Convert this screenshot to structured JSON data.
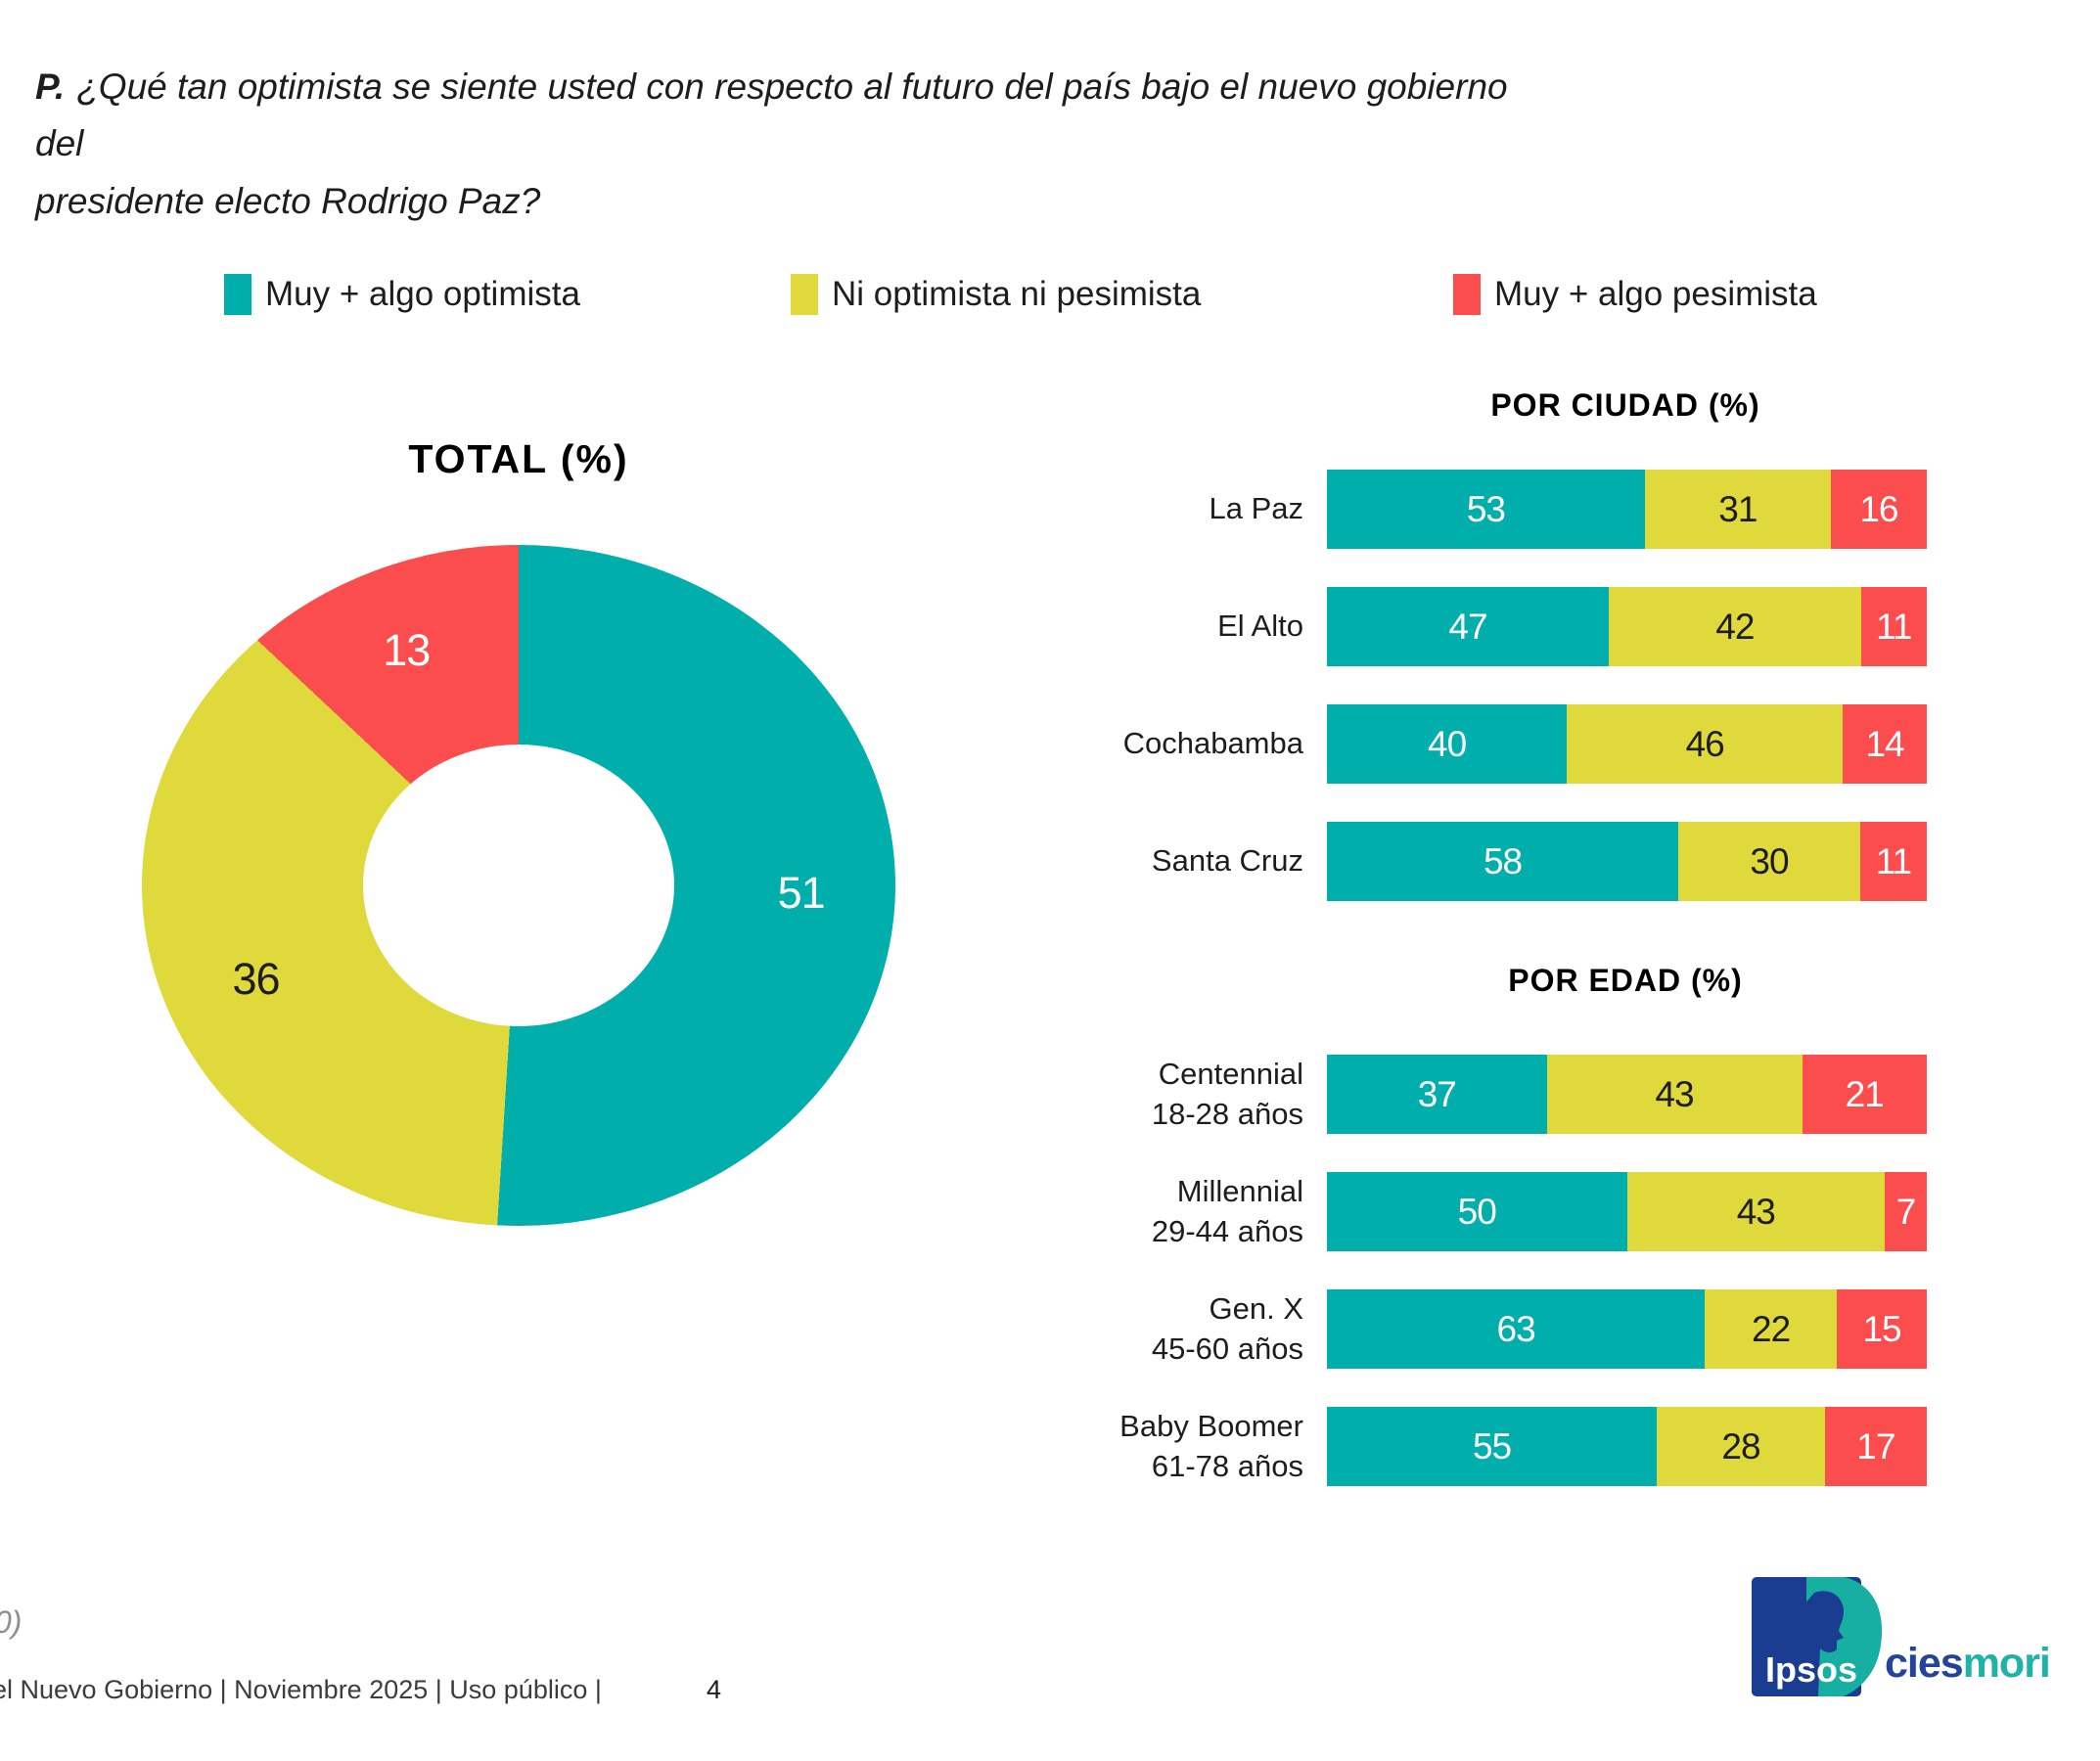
{
  "question": {
    "prefix": "P.",
    "line1": "¿Qué tan optimista se siente usted con respecto al futuro del país bajo el nuevo gobierno del",
    "line2": "presidente electo Rodrigo Paz?"
  },
  "legend": [
    {
      "label": "Muy + algo optimista",
      "color": "#00AEAB"
    },
    {
      "label": "Ni optimista ni pesimista",
      "color": "#DFD93C"
    },
    {
      "label": "Muy + algo pesimista",
      "color": "#FB4D4D"
    }
  ],
  "colors": {
    "optimista": "#00AEAB",
    "neutral": "#DFD93C",
    "pesimista": "#FB4D4D",
    "text": "#1D1D1D",
    "muted": "#8F8F8F"
  },
  "chart_data": [
    {
      "type": "pie",
      "variant": "donut",
      "title": "TOTAL (%)",
      "labels": [
        "Muy + algo optimista",
        "Ni optimista ni pesimista",
        "Muy + algo pesimista"
      ],
      "values": [
        51,
        36,
        13
      ],
      "colors": [
        "#00AEAB",
        "#DFD93C",
        "#FB4D4D"
      ],
      "value_label_colors": [
        "#FFFFFF",
        "#1D1D1D",
        "#FFFFFF"
      ],
      "start_angle_deg": 0,
      "direction": "clockwise"
    },
    {
      "type": "bar",
      "variant": "stacked-horizontal",
      "title": "POR CIUDAD (%)",
      "categories": [
        {
          "label": "La Paz"
        },
        {
          "label": "El Alto"
        },
        {
          "label": "Cochabamba"
        },
        {
          "label": "Santa Cruz"
        }
      ],
      "series": [
        {
          "name": "Muy + algo optimista",
          "color": "#00AEAB",
          "values": [
            53,
            47,
            40,
            58
          ]
        },
        {
          "name": "Ni optimista ni pesimista",
          "color": "#DFD93C",
          "values": [
            31,
            42,
            46,
            30
          ]
        },
        {
          "name": "Muy + algo pesimista",
          "color": "#FB4D4D",
          "values": [
            16,
            11,
            14,
            11
          ]
        }
      ],
      "value_label_colors": [
        "#FFFFFF",
        "#1D1D1D",
        "#FFFFFF"
      ],
      "xlim": [
        0,
        100
      ]
    },
    {
      "type": "bar",
      "variant": "stacked-horizontal",
      "title": "POR EDAD (%)",
      "categories": [
        {
          "label": "Centennial",
          "sublabel": "18-28 años"
        },
        {
          "label": "Millennial",
          "sublabel": "29-44 años"
        },
        {
          "label": "Gen. X",
          "sublabel": "45-60 años"
        },
        {
          "label": "Baby Boomer",
          "sublabel": "61-78 años"
        }
      ],
      "series": [
        {
          "name": "Muy + algo optimista",
          "color": "#00AEAB",
          "values": [
            37,
            50,
            63,
            55
          ]
        },
        {
          "name": "Ni optimista ni pesimista",
          "color": "#DFD93C",
          "values": [
            43,
            43,
            22,
            28
          ]
        },
        {
          "name": "Muy + algo pesimista",
          "color": "#FB4D4D",
          "values": [
            21,
            7,
            15,
            17
          ]
        }
      ],
      "value_label_colors": [
        "#FFFFFF",
        "#1D1D1D",
        "#FFFFFF"
      ],
      "xlim": [
        0,
        100
      ]
    }
  ],
  "footer": {
    "cropped_note": "0)",
    "left_text": "el Nuevo Gobierno | Noviembre 2025 | Uso público |",
    "page_number": "4"
  },
  "logo": {
    "ipsos": "Ipsos",
    "cies": "cies",
    "mori": "mori",
    "blue": "#1B3D91",
    "teal": "#18AFA3"
  }
}
